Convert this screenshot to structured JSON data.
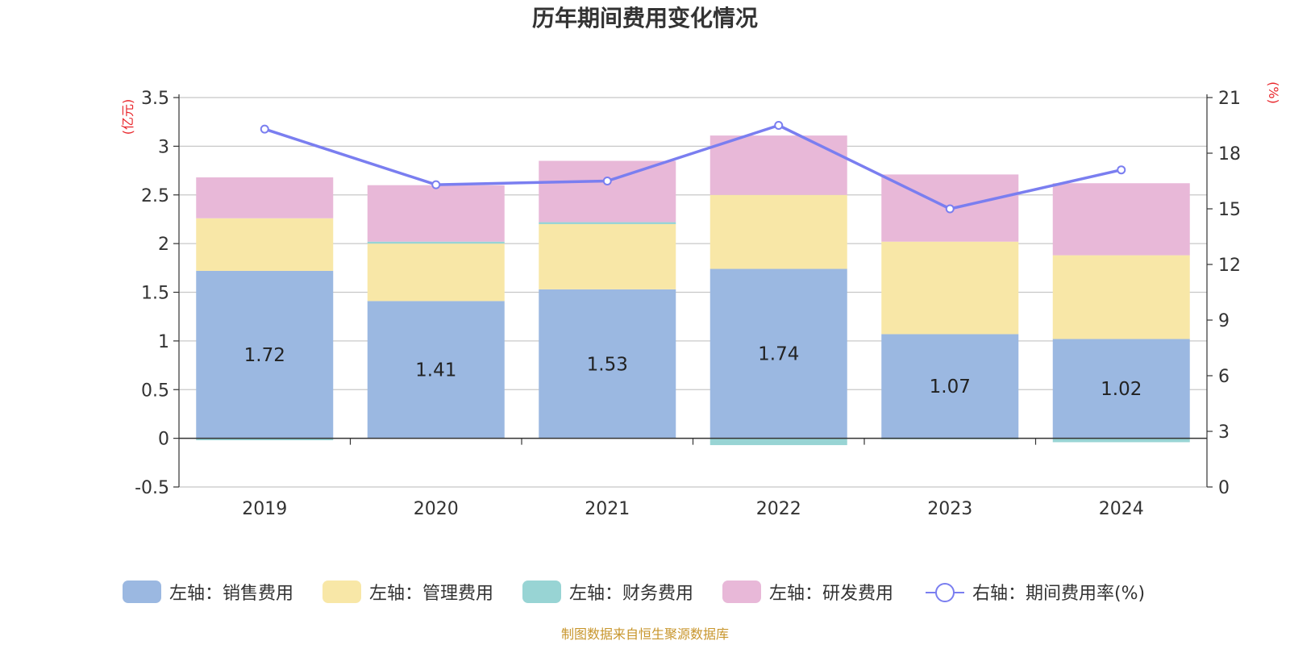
{
  "chart_data": {
    "type": "bar",
    "title": "历年期间费用变化情况",
    "categories": [
      "2019",
      "2020",
      "2021",
      "2022",
      "2023",
      "2024"
    ],
    "left_axis": {
      "unit": "(亿元)",
      "ylim": [
        -0.5,
        3.5
      ],
      "ticks": [
        "-0.5",
        "0",
        "0.5",
        "1",
        "1.5",
        "2",
        "2.5",
        "3",
        "3.5"
      ]
    },
    "right_axis": {
      "unit": "(%)",
      "ylim": [
        0,
        21
      ],
      "ticks": [
        "0",
        "3",
        "6",
        "9",
        "12",
        "15",
        "18",
        "21"
      ]
    },
    "series": [
      {
        "name": "左轴：销售费用",
        "axis": "left",
        "kind": "bar",
        "stack": true,
        "color": "#9bb8e1",
        "values": [
          1.72,
          1.41,
          1.53,
          1.74,
          1.07,
          1.02
        ],
        "labels": [
          "1.72",
          "1.41",
          "1.53",
          "1.74",
          "1.07",
          "1.02"
        ]
      },
      {
        "name": "左轴：管理费用",
        "axis": "left",
        "kind": "bar",
        "stack": true,
        "color": "#f8e7a7",
        "values": [
          0.54,
          0.59,
          0.67,
          0.76,
          0.95,
          0.86
        ]
      },
      {
        "name": "左轴：财务费用",
        "axis": "left",
        "kind": "bar",
        "stack": true,
        "color": "#98d4d4",
        "values": [
          -0.02,
          0.02,
          0.02,
          -0.07,
          -0.01,
          -0.04
        ]
      },
      {
        "name": "左轴：研发费用",
        "axis": "left",
        "kind": "bar",
        "stack": true,
        "color": "#e8b8d8",
        "values": [
          0.42,
          0.58,
          0.63,
          0.61,
          0.69,
          0.74
        ]
      },
      {
        "name": "右轴：期间费用率(%)",
        "axis": "right",
        "kind": "line",
        "color": "#7a7ef0",
        "values": [
          19.3,
          16.3,
          16.5,
          19.5,
          15.0,
          17.1
        ]
      }
    ],
    "grid": true,
    "legend_position": "bottom"
  },
  "source_note": "制图数据来自恒生聚源数据库"
}
